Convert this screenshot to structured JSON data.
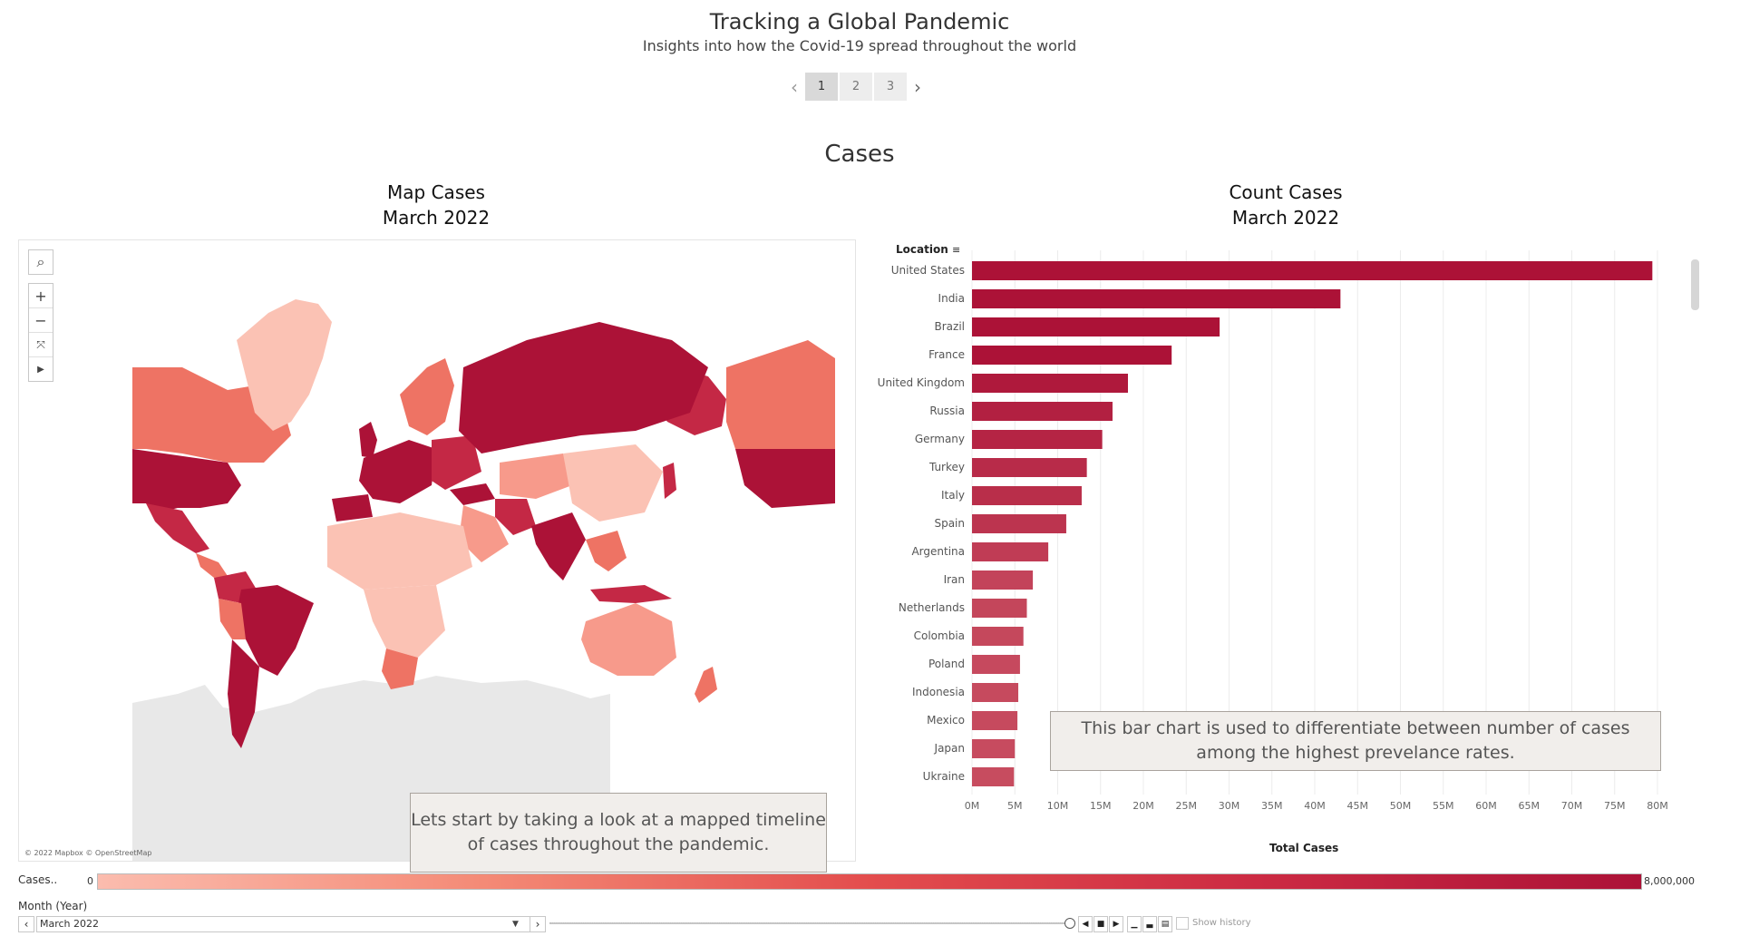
{
  "header": {
    "title": "Tracking a Global Pandemic",
    "subtitle": "Insights into how the Covid-19 spread throughout the world"
  },
  "pager": {
    "pages": [
      "1",
      "2",
      "3"
    ],
    "active": "1"
  },
  "section_title": "Cases",
  "map": {
    "title_line1": "Map Cases",
    "title_line2": "March 2022",
    "attribution": "© 2022 Mapbox © OpenStreetMap",
    "caption": "Lets start by taking a look at a mapped timeline of cases throughout the pandemic."
  },
  "bar": {
    "title_line1": "Count Cases",
    "title_line2": "March 2022",
    "location_header": "Location",
    "x_axis_title": "Total Cases",
    "caption": "This bar chart is used to differentiate between number of cases among the highest prevelance rates."
  },
  "chart_data": {
    "type": "bar",
    "orientation": "horizontal",
    "categories": [
      "United States",
      "India",
      "Brazil",
      "France",
      "United Kingdom",
      "Russia",
      "Germany",
      "Turkey",
      "Italy",
      "Spain",
      "Argentina",
      "Iran",
      "Netherlands",
      "Colombia",
      "Poland",
      "Indonesia",
      "Mexico",
      "Japan",
      "Ukraine"
    ],
    "values": [
      79.4,
      43.0,
      28.9,
      23.3,
      18.2,
      16.4,
      15.2,
      13.4,
      12.8,
      11.0,
      8.9,
      7.1,
      6.4,
      6.0,
      5.6,
      5.4,
      5.3,
      5.0,
      4.9
    ],
    "value_unit": "M",
    "xlabel": "Total Cases",
    "ylabel": "Location",
    "xlim": [
      0,
      80
    ],
    "x_ticks": [
      "0M",
      "5M",
      "10M",
      "15M",
      "20M",
      "25M",
      "30M",
      "35M",
      "40M",
      "45M",
      "50M",
      "55M",
      "60M",
      "65M",
      "70M",
      "75M",
      "80M"
    ],
    "grid": true,
    "color_scale": [
      "#fbbcae",
      "#ac1237"
    ]
  },
  "legend": {
    "title": "Cases..",
    "min_label": "0",
    "max_label": "8,000,000"
  },
  "filter": {
    "label": "Month (Year)",
    "value": "March 2022",
    "show_history": "Show history"
  },
  "colors": {
    "dark": "#ac1237",
    "high": "#c42845",
    "mid": "#ee7364",
    "low": "#f79a8b",
    "lowest": "#fbc2b4",
    "antarctica": "#e8e8e8"
  }
}
